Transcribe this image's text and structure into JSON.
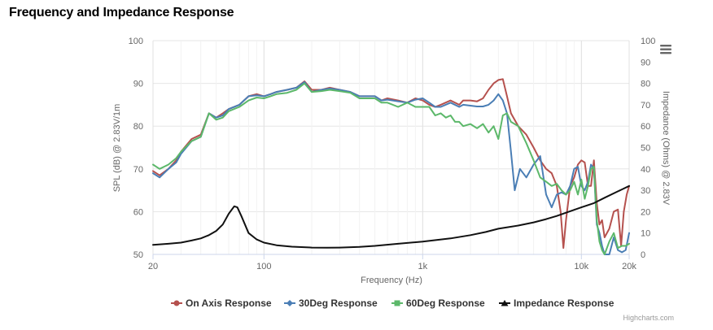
{
  "page": {
    "title": "Frequency and Impedance Response"
  },
  "menu": {
    "icon": "hamburger-menu-icon"
  },
  "credits": "Highcharts.com",
  "chart_data": {
    "type": "line",
    "title": "",
    "xlabel": "Frequency (Hz)",
    "ylabel_left": "SPL (dB) @ 2.83V/1m",
    "ylabel_right": "Impedance (Ohms) @ 2.83V",
    "x_scale": "log",
    "xlim": [
      20,
      20000
    ],
    "ylim_left": [
      50,
      100
    ],
    "ylim_right": [
      0,
      100
    ],
    "x_ticks": [
      {
        "value": 20,
        "label": "20"
      },
      {
        "value": 100,
        "label": "100"
      },
      {
        "value": 1000,
        "label": "1k"
      },
      {
        "value": 10000,
        "label": "10k"
      },
      {
        "value": 20000,
        "label": "20k"
      }
    ],
    "y_ticks_left": [
      50,
      60,
      70,
      80,
      90,
      100
    ],
    "y_ticks_right": [
      0,
      10,
      20,
      30,
      40,
      50,
      60,
      70,
      80,
      90,
      100
    ],
    "grid": true,
    "legend_position": "bottom-center",
    "series": [
      {
        "name": "On Axis Response",
        "axis": "left",
        "color": "#b5514e",
        "marker": "circle",
        "points": [
          [
            20,
            69.5
          ],
          [
            22,
            68.5
          ],
          [
            25,
            70
          ],
          [
            28,
            72
          ],
          [
            30,
            74
          ],
          [
            35,
            77
          ],
          [
            40,
            78
          ],
          [
            45,
            83
          ],
          [
            50,
            82
          ],
          [
            55,
            83
          ],
          [
            60,
            84
          ],
          [
            70,
            85
          ],
          [
            80,
            87
          ],
          [
            90,
            87.5
          ],
          [
            100,
            87
          ],
          [
            110,
            87.5
          ],
          [
            120,
            88
          ],
          [
            140,
            88.5
          ],
          [
            160,
            89
          ],
          [
            180,
            90.5
          ],
          [
            200,
            88.5
          ],
          [
            230,
            88.5
          ],
          [
            260,
            89
          ],
          [
            300,
            88.5
          ],
          [
            350,
            88
          ],
          [
            400,
            87
          ],
          [
            450,
            87
          ],
          [
            500,
            87
          ],
          [
            550,
            86
          ],
          [
            600,
            86.5
          ],
          [
            700,
            86
          ],
          [
            800,
            85.5
          ],
          [
            900,
            86.5
          ],
          [
            1000,
            86
          ],
          [
            1100,
            85
          ],
          [
            1200,
            84.5
          ],
          [
            1300,
            85
          ],
          [
            1500,
            86
          ],
          [
            1700,
            85
          ],
          [
            1800,
            86
          ],
          [
            2000,
            86
          ],
          [
            2200,
            85.8
          ],
          [
            2400,
            86.5
          ],
          [
            2600,
            88.5
          ],
          [
            2800,
            90
          ],
          [
            3000,
            90.8
          ],
          [
            3200,
            91
          ],
          [
            3400,
            87
          ],
          [
            3600,
            83
          ],
          [
            4000,
            80
          ],
          [
            4500,
            78
          ],
          [
            5000,
            75
          ],
          [
            5500,
            72
          ],
          [
            6000,
            70
          ],
          [
            6500,
            69
          ],
          [
            7000,
            66
          ],
          [
            7400,
            60
          ],
          [
            7700,
            51.5
          ],
          [
            8000,
            58
          ],
          [
            8500,
            66
          ],
          [
            9000,
            68
          ],
          [
            9500,
            71
          ],
          [
            10000,
            72
          ],
          [
            10500,
            71.5
          ],
          [
            11000,
            66
          ],
          [
            11500,
            66
          ],
          [
            12000,
            72
          ],
          [
            12500,
            62
          ],
          [
            13000,
            57
          ],
          [
            13500,
            58
          ],
          [
            14000,
            54
          ],
          [
            15000,
            56
          ],
          [
            16000,
            60
          ],
          [
            17000,
            60.5
          ],
          [
            17800,
            52
          ],
          [
            18500,
            60
          ],
          [
            19300,
            64
          ],
          [
            20000,
            66
          ]
        ]
      },
      {
        "name": "30Deg Response",
        "axis": "left",
        "color": "#4a7eb5",
        "marker": "diamond",
        "points": [
          [
            20,
            69
          ],
          [
            22,
            68
          ],
          [
            25,
            70
          ],
          [
            28,
            71.5
          ],
          [
            30,
            73.5
          ],
          [
            35,
            76.5
          ],
          [
            40,
            77.5
          ],
          [
            45,
            83
          ],
          [
            50,
            82
          ],
          [
            55,
            82.5
          ],
          [
            60,
            84
          ],
          [
            70,
            85
          ],
          [
            80,
            87
          ],
          [
            90,
            87.2
          ],
          [
            100,
            87
          ],
          [
            110,
            87.5
          ],
          [
            120,
            88
          ],
          [
            140,
            88.5
          ],
          [
            160,
            89
          ],
          [
            180,
            90.3
          ],
          [
            200,
            88
          ],
          [
            230,
            88.5
          ],
          [
            260,
            88.8
          ],
          [
            300,
            88.5
          ],
          [
            350,
            88
          ],
          [
            400,
            87
          ],
          [
            450,
            87
          ],
          [
            500,
            87
          ],
          [
            550,
            86
          ],
          [
            600,
            86.2
          ],
          [
            700,
            85.8
          ],
          [
            800,
            85.5
          ],
          [
            900,
            86.2
          ],
          [
            1000,
            86.5
          ],
          [
            1100,
            85.5
          ],
          [
            1200,
            84.5
          ],
          [
            1300,
            84.5
          ],
          [
            1500,
            85.5
          ],
          [
            1700,
            84.5
          ],
          [
            1800,
            85
          ],
          [
            2000,
            84.8
          ],
          [
            2200,
            84.6
          ],
          [
            2400,
            84.6
          ],
          [
            2600,
            85
          ],
          [
            2800,
            86
          ],
          [
            3000,
            87.5
          ],
          [
            3200,
            86
          ],
          [
            3400,
            83
          ],
          [
            3600,
            74
          ],
          [
            3800,
            65
          ],
          [
            4100,
            70
          ],
          [
            4500,
            68
          ],
          [
            5000,
            71
          ],
          [
            5500,
            73
          ],
          [
            6000,
            64
          ],
          [
            6500,
            61
          ],
          [
            7000,
            64
          ],
          [
            7500,
            64.5
          ],
          [
            8000,
            64
          ],
          [
            8500,
            66
          ],
          [
            9000,
            70
          ],
          [
            9500,
            70.5
          ],
          [
            10000,
            66
          ],
          [
            10500,
            65
          ],
          [
            11000,
            67
          ],
          [
            11500,
            71
          ],
          [
            12000,
            70
          ],
          [
            12500,
            57
          ],
          [
            13000,
            55
          ],
          [
            13500,
            52
          ],
          [
            14000,
            50
          ],
          [
            15000,
            50
          ],
          [
            16000,
            54
          ],
          [
            17000,
            51
          ],
          [
            18000,
            50.5
          ],
          [
            19000,
            51
          ],
          [
            20000,
            55
          ]
        ]
      },
      {
        "name": "60Deg Response",
        "axis": "left",
        "color": "#5cb86a",
        "marker": "square",
        "points": [
          [
            20,
            71
          ],
          [
            22,
            70
          ],
          [
            25,
            71
          ],
          [
            28,
            72.5
          ],
          [
            30,
            74
          ],
          [
            35,
            76.5
          ],
          [
            40,
            77.5
          ],
          [
            45,
            83
          ],
          [
            50,
            81.5
          ],
          [
            55,
            82
          ],
          [
            60,
            83.5
          ],
          [
            70,
            84.5
          ],
          [
            80,
            86
          ],
          [
            90,
            86.7
          ],
          [
            100,
            86.5
          ],
          [
            110,
            87
          ],
          [
            120,
            87.5
          ],
          [
            140,
            87.8
          ],
          [
            160,
            88.5
          ],
          [
            180,
            90
          ],
          [
            200,
            88
          ],
          [
            230,
            88.2
          ],
          [
            260,
            88.5
          ],
          [
            300,
            88.2
          ],
          [
            350,
            87.8
          ],
          [
            400,
            86.5
          ],
          [
            450,
            86.5
          ],
          [
            500,
            86.5
          ],
          [
            550,
            85.5
          ],
          [
            600,
            85.5
          ],
          [
            700,
            84.5
          ],
          [
            800,
            85.5
          ],
          [
            900,
            84.5
          ],
          [
            1000,
            84.5
          ],
          [
            1100,
            84.5
          ],
          [
            1200,
            82.5
          ],
          [
            1300,
            83
          ],
          [
            1400,
            82
          ],
          [
            1500,
            82.5
          ],
          [
            1600,
            81
          ],
          [
            1700,
            81
          ],
          [
            1800,
            80
          ],
          [
            2000,
            80.5
          ],
          [
            2200,
            79.5
          ],
          [
            2400,
            80.5
          ],
          [
            2600,
            78.5
          ],
          [
            2800,
            80
          ],
          [
            3000,
            77
          ],
          [
            3200,
            82.5
          ],
          [
            3400,
            83
          ],
          [
            3600,
            81
          ],
          [
            4000,
            80
          ],
          [
            4500,
            76
          ],
          [
            5000,
            72
          ],
          [
            5500,
            68
          ],
          [
            6000,
            67
          ],
          [
            6500,
            66
          ],
          [
            7000,
            66.5
          ],
          [
            7500,
            65
          ],
          [
            8000,
            64
          ],
          [
            8500,
            65
          ],
          [
            9000,
            67
          ],
          [
            9500,
            64
          ],
          [
            10000,
            67.5
          ],
          [
            10500,
            63
          ],
          [
            11000,
            66
          ],
          [
            11500,
            70
          ],
          [
            12000,
            70.5
          ],
          [
            12500,
            58
          ],
          [
            13000,
            53
          ],
          [
            13500,
            51
          ],
          [
            14000,
            50
          ],
          [
            15000,
            53
          ],
          [
            16000,
            55
          ],
          [
            17000,
            51.5
          ],
          [
            18000,
            52
          ],
          [
            19000,
            52
          ],
          [
            20000,
            52.5
          ]
        ]
      },
      {
        "name": "Impedance Response",
        "axis": "right",
        "color": "#111111",
        "marker": "triangle",
        "points": [
          [
            20,
            4.5
          ],
          [
            25,
            5
          ],
          [
            30,
            5.5
          ],
          [
            35,
            6.5
          ],
          [
            40,
            7.5
          ],
          [
            45,
            9
          ],
          [
            50,
            11
          ],
          [
            55,
            14
          ],
          [
            60,
            19
          ],
          [
            65,
            22.5
          ],
          [
            68,
            22
          ],
          [
            72,
            18
          ],
          [
            80,
            10
          ],
          [
            90,
            7
          ],
          [
            100,
            5.5
          ],
          [
            120,
            4.3
          ],
          [
            150,
            3.6
          ],
          [
            200,
            3.2
          ],
          [
            250,
            3.1
          ],
          [
            300,
            3.2
          ],
          [
            400,
            3.5
          ],
          [
            500,
            4
          ],
          [
            700,
            5
          ],
          [
            1000,
            6
          ],
          [
            1500,
            7.5
          ],
          [
            2000,
            9
          ],
          [
            2500,
            10.5
          ],
          [
            3000,
            12
          ],
          [
            4000,
            13.5
          ],
          [
            5000,
            15
          ],
          [
            6000,
            16.5
          ],
          [
            7000,
            18
          ],
          [
            8000,
            19.5
          ],
          [
            10000,
            22
          ],
          [
            12000,
            24
          ],
          [
            14000,
            26.5
          ],
          [
            17000,
            29.5
          ],
          [
            20000,
            32
          ]
        ]
      }
    ]
  }
}
